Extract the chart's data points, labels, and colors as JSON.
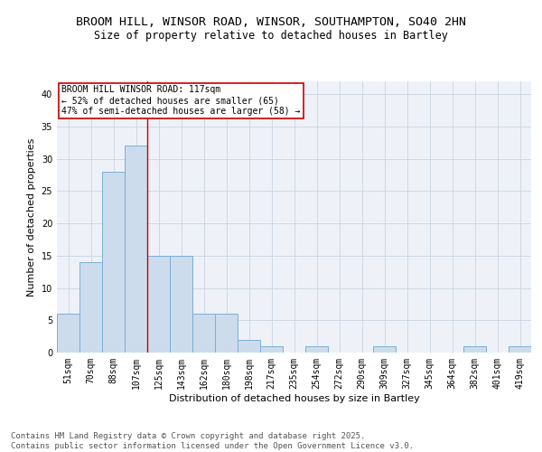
{
  "title_line1": "BROOM HILL, WINSOR ROAD, WINSOR, SOUTHAMPTON, SO40 2HN",
  "title_line2": "Size of property relative to detached houses in Bartley",
  "xlabel": "Distribution of detached houses by size in Bartley",
  "ylabel": "Number of detached properties",
  "categories": [
    "51sqm",
    "70sqm",
    "88sqm",
    "107sqm",
    "125sqm",
    "143sqm",
    "162sqm",
    "180sqm",
    "198sqm",
    "217sqm",
    "235sqm",
    "254sqm",
    "272sqm",
    "290sqm",
    "309sqm",
    "327sqm",
    "345sqm",
    "364sqm",
    "382sqm",
    "401sqm",
    "419sqm"
  ],
  "values": [
    6,
    14,
    28,
    32,
    15,
    15,
    6,
    6,
    2,
    1,
    0,
    1,
    0,
    0,
    1,
    0,
    0,
    0,
    1,
    0,
    1
  ],
  "bar_color": "#ccdcec",
  "bar_edge_color": "#7aafd4",
  "vline_x_index": 3.5,
  "vline_color": "#cc0000",
  "annotation_text": "BROOM HILL WINSOR ROAD: 117sqm\n← 52% of detached houses are smaller (65)\n47% of semi-detached houses are larger (58) →",
  "annotation_box_color": "#ffffff",
  "annotation_box_edge": "#cc0000",
  "ylim": [
    0,
    42
  ],
  "yticks": [
    0,
    5,
    10,
    15,
    20,
    25,
    30,
    35,
    40
  ],
  "grid_color": "#c8d4e0",
  "background_color": "#eef2f8",
  "footer_text": "Contains HM Land Registry data © Crown copyright and database right 2025.\nContains public sector information licensed under the Open Government Licence v3.0.",
  "title_fontsize": 9.5,
  "subtitle_fontsize": 8.5,
  "axis_label_fontsize": 8,
  "tick_fontsize": 7,
  "annotation_fontsize": 7,
  "footer_fontsize": 6.5
}
